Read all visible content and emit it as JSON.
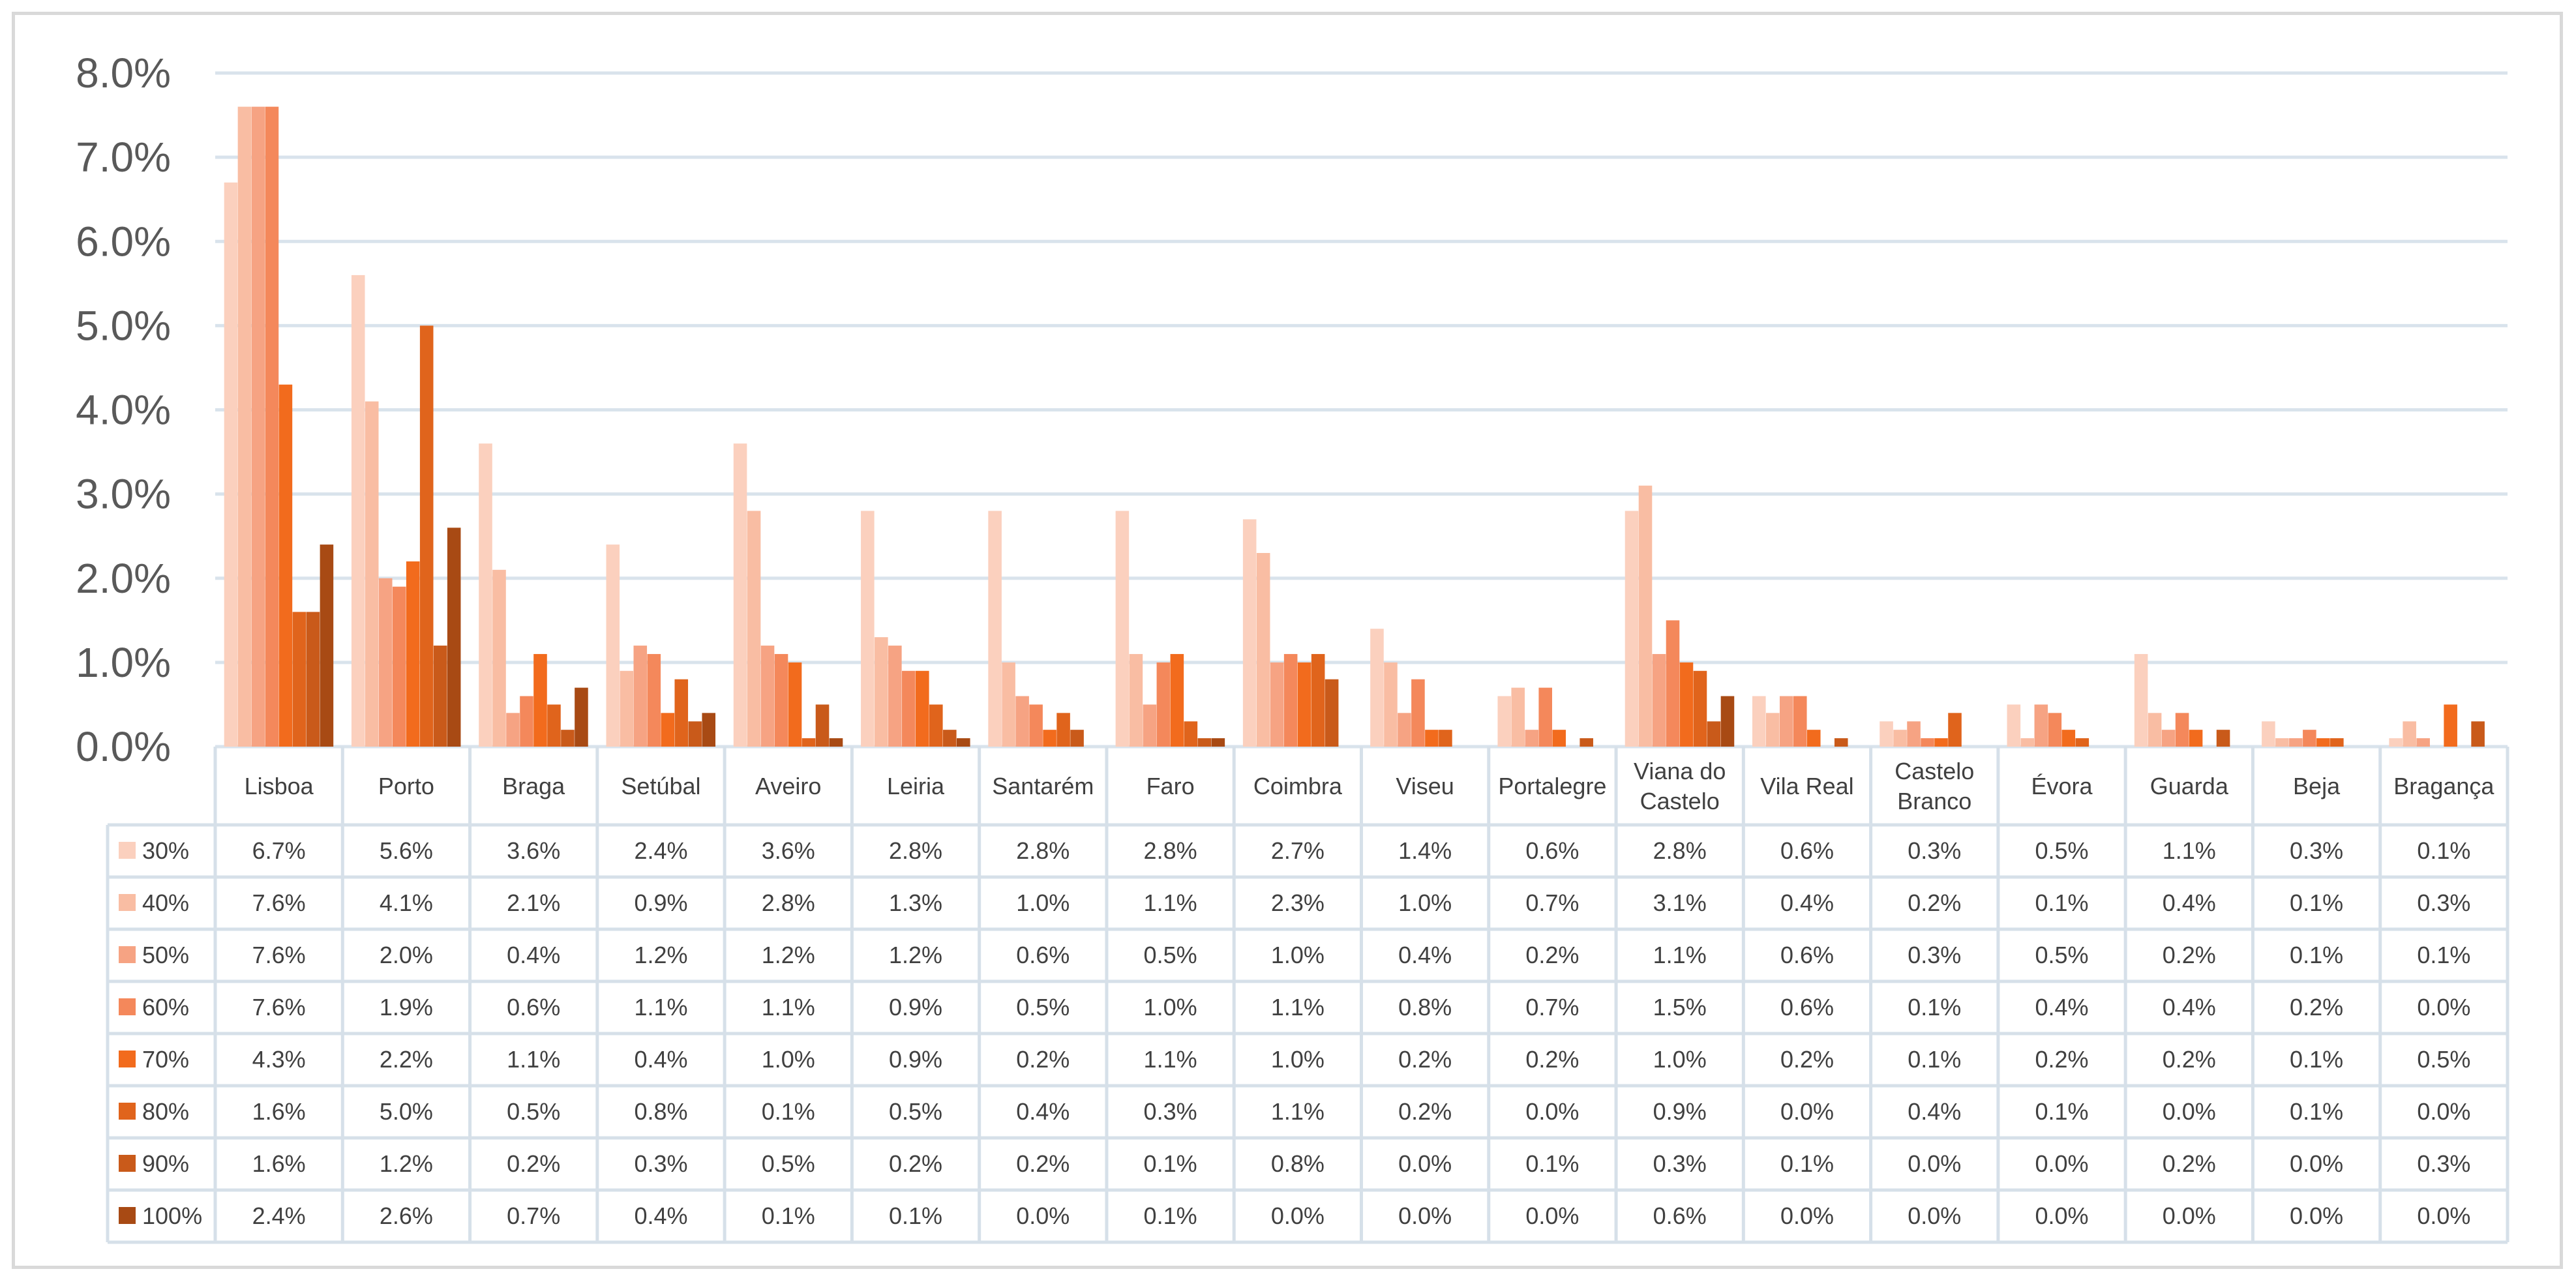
{
  "chart_data": {
    "type": "bar",
    "title": "",
    "xlabel": "",
    "ylabel": "",
    "ylim": [
      0,
      8
    ],
    "yticks": [
      "0.0%",
      "1.0%",
      "2.0%",
      "3.0%",
      "4.0%",
      "5.0%",
      "6.0%",
      "7.0%",
      "8.0%"
    ],
    "grid": true,
    "legend": "data-table",
    "categories": [
      [
        "Lisboa"
      ],
      [
        "Porto"
      ],
      [
        "Braga"
      ],
      [
        "Setúbal"
      ],
      [
        "Aveiro"
      ],
      [
        "Leiria"
      ],
      [
        "Santarém"
      ],
      [
        "Faro"
      ],
      [
        "Coimbra"
      ],
      [
        "Viseu"
      ],
      [
        "Portalegre"
      ],
      [
        "Viana do",
        "Castelo"
      ],
      [
        "Vila Real"
      ],
      [
        "Castelo",
        "Branco"
      ],
      [
        "Évora"
      ],
      [
        "Guarda"
      ],
      [
        "Beja"
      ],
      [
        "Bragança"
      ]
    ],
    "series": [
      {
        "name": "30%",
        "color": "#FBD0BE",
        "values": [
          6.7,
          5.6,
          3.6,
          2.4,
          3.6,
          2.8,
          2.8,
          2.8,
          2.7,
          1.4,
          0.6,
          2.8,
          0.6,
          0.3,
          0.5,
          1.1,
          0.3,
          0.1
        ]
      },
      {
        "name": "40%",
        "color": "#F9BDA3",
        "values": [
          7.6,
          4.1,
          2.1,
          0.9,
          2.8,
          1.3,
          1.0,
          1.1,
          2.3,
          1.0,
          0.7,
          3.1,
          0.4,
          0.2,
          0.1,
          0.4,
          0.1,
          0.3
        ]
      },
      {
        "name": "50%",
        "color": "#F6A383",
        "values": [
          7.6,
          2.0,
          0.4,
          1.2,
          1.2,
          1.2,
          0.6,
          0.5,
          1.0,
          0.4,
          0.2,
          1.1,
          0.6,
          0.3,
          0.5,
          0.2,
          0.1,
          0.1
        ]
      },
      {
        "name": "60%",
        "color": "#F4885B",
        "values": [
          7.6,
          1.9,
          0.6,
          1.1,
          1.1,
          0.9,
          0.5,
          1.0,
          1.1,
          0.8,
          0.7,
          1.5,
          0.6,
          0.1,
          0.4,
          0.4,
          0.2,
          0.0
        ]
      },
      {
        "name": "70%",
        "color": "#F26B1D",
        "values": [
          4.3,
          2.2,
          1.1,
          0.4,
          1.0,
          0.9,
          0.2,
          1.1,
          1.0,
          0.2,
          0.2,
          1.0,
          0.2,
          0.1,
          0.2,
          0.2,
          0.1,
          0.5
        ]
      },
      {
        "name": "80%",
        "color": "#E0641C",
        "values": [
          1.6,
          5.0,
          0.5,
          0.8,
          0.1,
          0.5,
          0.4,
          0.3,
          1.1,
          0.2,
          0.0,
          0.9,
          0.0,
          0.4,
          0.1,
          0.0,
          0.1,
          0.0
        ]
      },
      {
        "name": "90%",
        "color": "#C95A1A",
        "values": [
          1.6,
          1.2,
          0.2,
          0.3,
          0.5,
          0.2,
          0.2,
          0.1,
          0.8,
          0.0,
          0.1,
          0.3,
          0.1,
          0.0,
          0.0,
          0.2,
          0.0,
          0.3
        ]
      },
      {
        "name": "100%",
        "color": "#A84A14",
        "values": [
          2.4,
          2.6,
          0.7,
          0.4,
          0.1,
          0.1,
          0.0,
          0.1,
          0.0,
          0.0,
          0.0,
          0.6,
          0.0,
          0.0,
          0.0,
          0.0,
          0.0,
          0.0
        ]
      }
    ],
    "value_format": "percent-1dp"
  }
}
